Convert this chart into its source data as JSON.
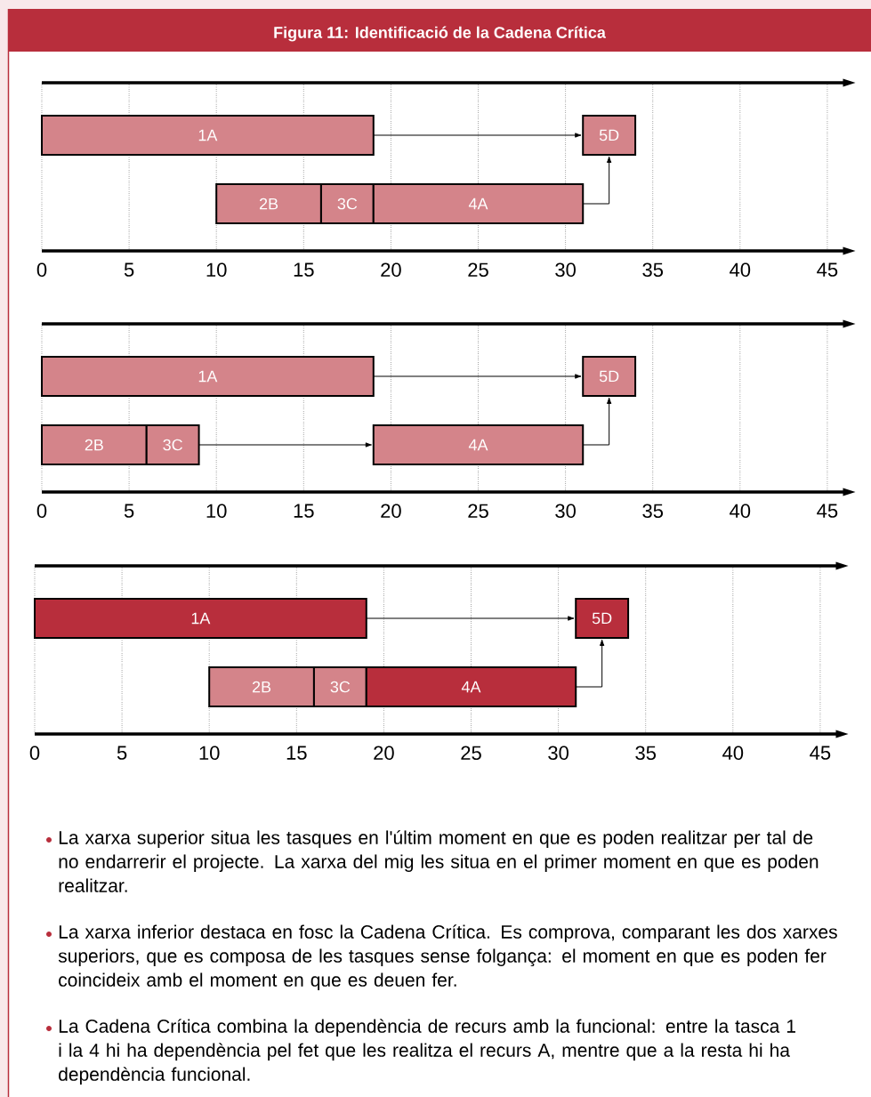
{
  "chart_data": [
    {
      "type": "bar",
      "orientation": "horizontal",
      "title": "Figura 11: Identificació de la Cadena Crítica",
      "categories": [
        null,
        null
      ],
      "xlim": [
        0,
        46
      ],
      "xticks": [
        0,
        5,
        10,
        15,
        20,
        25,
        30,
        35,
        40,
        45
      ],
      "grid": "x",
      "series": [
        {
          "name": "1A",
          "color": "#d4848a",
          "values": [
            19,
            null
          ],
          "base": [
            0,
            null
          ]
        },
        {
          "name": "2B",
          "color": "#d4848a",
          "values": [
            null,
            6
          ],
          "base": [
            null,
            10
          ]
        },
        {
          "name": "3C",
          "color": "#d4848a",
          "values": [
            null,
            3
          ],
          "base": [
            null,
            16
          ]
        },
        {
          "name": "4A",
          "color": "#d4848a",
          "values": [
            null,
            12
          ],
          "base": [
            null,
            19
          ]
        },
        {
          "name": "5D",
          "color": "#d4848a",
          "values": [
            3,
            null
          ],
          "base": [
            31,
            null
          ]
        }
      ]
    },
    {
      "type": "bar",
      "orientation": "horizontal",
      "categories": [
        null,
        null
      ],
      "xlim": [
        0,
        46
      ],
      "xticks": [
        0,
        5,
        10,
        15,
        20,
        25,
        30,
        35,
        40,
        45
      ],
      "grid": "x",
      "series": [
        {
          "name": "1A",
          "color": "#d4848a",
          "values": [
            19,
            null
          ],
          "base": [
            0,
            null
          ]
        },
        {
          "name": "2B",
          "color": "#d4848a",
          "values": [
            null,
            6
          ],
          "base": [
            null,
            0
          ]
        },
        {
          "name": "3C",
          "color": "#d4848a",
          "values": [
            null,
            3
          ],
          "base": [
            null,
            6
          ]
        },
        {
          "name": "4A",
          "color": "#d4848a",
          "values": [
            null,
            12
          ],
          "base": [
            null,
            19
          ]
        },
        {
          "name": "5D",
          "color": "#d4848a",
          "values": [
            3,
            null
          ],
          "base": [
            31,
            null
          ]
        }
      ]
    },
    {
      "type": "bar",
      "orientation": "horizontal",
      "categories": [
        null,
        null
      ],
      "xlim": [
        0,
        46
      ],
      "xticks": [
        0,
        5,
        10,
        15,
        20,
        25,
        30,
        35,
        40,
        45
      ],
      "grid": "x",
      "annotations": [
        "La xarxa superior situa les tasques en l'últim moment en que es poden realitzar per tal de no endarrerir el projecte. La xarxa del mig les situa en el primer moment en que es poden realitzar.",
        "La xarxa inferior destaca en fosc la Cadena Crítica. Es comprova, comparant les dos xarxes superiors, que es composa de les tasques sense folgança: el moment en que es poden fer coincideix amb el moment en que es deuen fer.",
        "La Cadena Crítica combina la dependència de recurs amb la funcional: entre la tasca 1 i la 4 hi ha dependència pel fet que les realitza el recurs A, mentre que a la resta hi ha dependència funcional."
      ],
      "series": [
        {
          "name": "1A",
          "color": "#b82e3c",
          "values": [
            19,
            null
          ],
          "base": [
            0,
            null
          ]
        },
        {
          "name": "2B",
          "color": "#d4848a",
          "values": [
            null,
            6
          ],
          "base": [
            null,
            10
          ]
        },
        {
          "name": "3C",
          "color": "#d4848a",
          "values": [
            null,
            3
          ],
          "base": [
            null,
            16
          ]
        },
        {
          "name": "4A",
          "color": "#b82e3c",
          "values": [
            null,
            12
          ],
          "base": [
            null,
            19
          ]
        },
        {
          "name": "5D",
          "color": "#b82e3c",
          "values": [
            3,
            null
          ],
          "base": [
            31,
            null
          ]
        }
      ]
    }
  ]
}
